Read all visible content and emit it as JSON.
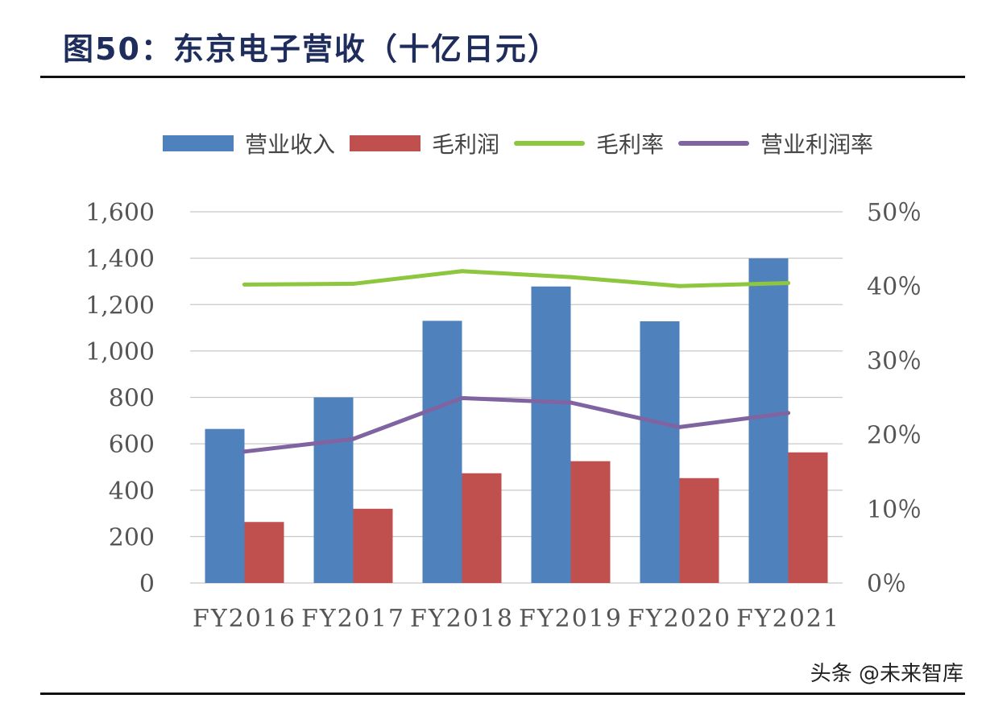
{
  "figure": {
    "title": "图50：东京电子营收（十亿日元）",
    "watermark": "头条 @未来智库"
  },
  "colors": {
    "revenue": "#4f81bd",
    "gross_profit": "#c0504d",
    "gross_margin": "#8dc63f",
    "operating_margin": "#8064a2"
  },
  "legend": [
    {
      "label": "营业收入",
      "kind": "box",
      "color": "#4f81bd"
    },
    {
      "label": "毛利润",
      "kind": "box",
      "color": "#c0504d"
    },
    {
      "label": "毛利率",
      "kind": "line",
      "color": "#8dc63f"
    },
    {
      "label": "营业利润率",
      "kind": "line",
      "color": "#8064a2"
    }
  ],
  "chart_data": {
    "type": "bar",
    "categories": [
      "FY2016",
      "FY2017",
      "FY2018",
      "FY2019",
      "FY2020",
      "FY2021"
    ],
    "series": [
      {
        "name": "营业收入",
        "type": "bar",
        "axis": "left",
        "values": [
          664,
          800,
          1130,
          1278,
          1128,
          1399
        ]
      },
      {
        "name": "毛利润",
        "type": "bar",
        "axis": "left",
        "values": [
          263,
          320,
          473,
          525,
          452,
          563
        ]
      },
      {
        "name": "毛利率",
        "type": "line",
        "axis": "right",
        "values": [
          40.2,
          40.3,
          42.0,
          41.2,
          40.0,
          40.4
        ]
      },
      {
        "name": "营业利润率",
        "type": "line",
        "axis": "right",
        "values": [
          17.7,
          19.4,
          24.9,
          24.3,
          21.0,
          22.9
        ]
      }
    ],
    "left_axis": {
      "ylim": [
        0,
        1600
      ],
      "ticks": [
        "0",
        "200",
        "400",
        "600",
        "800",
        "1,000",
        "1,200",
        "1,400",
        "1,600"
      ]
    },
    "right_axis": {
      "ylim": [
        0,
        50
      ],
      "ticks": [
        "0％",
        "10％",
        "20％",
        "30％",
        "40％",
        "50％"
      ]
    },
    "grid": true,
    "legend_position": "top"
  }
}
